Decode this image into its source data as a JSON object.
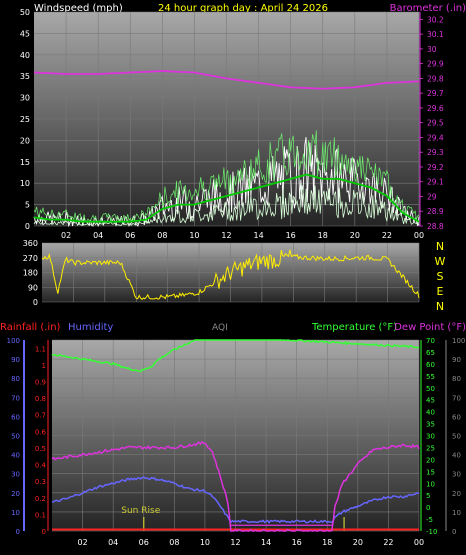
{
  "header": {
    "left": "Windspeed (mph)",
    "center": "24 hour graph day : April 24 2026",
    "right": "Barometer (.in)"
  },
  "colors": {
    "windspeed": "#ffffff",
    "wind_avg": "#00cc00",
    "gust": "#d8ffd8",
    "barometer": "#dd33dd",
    "direction": "#ffee00",
    "rainfall": "#ff2222",
    "humidity": "#6666ff",
    "aqi": "#888888",
    "temperature": "#33ff33",
    "dewpoint": "#dd33dd",
    "sunrise": "#cccc33"
  },
  "chart_data": [
    {
      "type": "line",
      "name": "wind-and-barometer",
      "xlabel": "",
      "x_ticks": [
        "02",
        "04",
        "06",
        "08",
        "10",
        "12",
        "14",
        "16",
        "18",
        "20",
        "22",
        "00"
      ],
      "x_range_hours": [
        0,
        24
      ],
      "y_left": {
        "label": "Windspeed (mph)",
        "ticks": [
          0,
          5,
          10,
          15,
          20,
          25,
          30,
          35,
          40,
          45,
          50
        ],
        "range": [
          0,
          50
        ]
      },
      "y_right": {
        "label": "Barometer (.in)",
        "ticks": [
          "28.8",
          "28.9",
          "29",
          "29.1",
          "29.2",
          "29.3",
          "29.4",
          "29.5",
          "29.6",
          "29.7",
          "29.8",
          "29.9",
          "30",
          "30.1",
          "30.2"
        ],
        "range": [
          28.8,
          30.25
        ]
      },
      "series": [
        {
          "name": "Barometer",
          "axis": "right",
          "x": [
            0,
            2,
            4,
            6,
            8,
            10,
            12,
            14,
            16,
            18,
            20,
            22,
            24
          ],
          "values": [
            29.84,
            29.83,
            29.83,
            29.84,
            29.85,
            29.84,
            29.8,
            29.77,
            29.74,
            29.73,
            29.74,
            29.77,
            29.78
          ]
        },
        {
          "name": "Wind average",
          "axis": "left",
          "x": [
            0,
            1,
            2,
            3,
            4,
            5,
            6,
            7,
            8,
            9,
            10,
            11,
            12,
            13,
            14,
            15,
            16,
            17,
            18,
            19,
            20,
            21,
            22,
            23,
            24
          ],
          "values": [
            2,
            1.5,
            1.5,
            1,
            1,
            1,
            1,
            1.5,
            4,
            5,
            5,
            6,
            7,
            8,
            9,
            10,
            11,
            12,
            11,
            11,
            10,
            9,
            7,
            3,
            1
          ]
        },
        {
          "name": "Gust",
          "axis": "left",
          "x": [
            0,
            1,
            2,
            3,
            4,
            5,
            6,
            7,
            8,
            9,
            10,
            11,
            12,
            13,
            14,
            15,
            16,
            17,
            18,
            19,
            20,
            21,
            22,
            23,
            24
          ],
          "values": [
            5,
            4,
            4,
            3,
            3,
            3,
            3,
            4,
            9,
            11,
            12,
            13,
            14,
            16,
            18,
            21,
            23,
            25,
            22,
            21,
            18,
            16,
            13,
            6,
            3
          ]
        }
      ]
    },
    {
      "type": "scatter",
      "name": "wind-direction",
      "y_ticks": [
        0,
        90,
        180,
        270,
        360
      ],
      "y_range": [
        0,
        360
      ],
      "right_labels": [
        "N",
        "W",
        "S",
        "E",
        "N"
      ],
      "series": [
        {
          "name": "Direction",
          "x": [
            0,
            0.5,
            1,
            1.5,
            2,
            3,
            4,
            5,
            6,
            7,
            8,
            9,
            10,
            11,
            12,
            13,
            14,
            15,
            16,
            17,
            18,
            19,
            20,
            21,
            22,
            23,
            24
          ],
          "values": [
            270,
            280,
            60,
            260,
            240,
            240,
            240,
            240,
            30,
            30,
            30,
            40,
            60,
            120,
            180,
            220,
            250,
            260,
            275,
            270,
            265,
            265,
            270,
            270,
            260,
            150,
            40
          ]
        }
      ]
    },
    {
      "type": "line",
      "name": "rain-humidity-temperature",
      "header": {
        "rainfall": "Rainfall (.in)",
        "humidity": "Humidity",
        "aqi": "AQI",
        "temperature": "Temperature (°F)",
        "dewpoint": "Dew Point (°F)"
      },
      "x_ticks": [
        "02",
        "04",
        "06",
        "08",
        "10",
        "12",
        "14",
        "16",
        "18",
        "20",
        "22",
        "00"
      ],
      "x_range_hours": [
        0,
        24
      ],
      "y_humidity": {
        "ticks": [
          0,
          10,
          20,
          30,
          40,
          50,
          60,
          70,
          80,
          90,
          100
        ],
        "range": [
          0,
          100
        ]
      },
      "y_rainfall": {
        "ticks": [
          "0",
          "0.1",
          "0.2",
          "0.3",
          "0.4",
          "0.5",
          "0.6",
          "0.7",
          "0.8",
          "0.9",
          "1",
          "1.1"
        ],
        "range": [
          0,
          1.15
        ]
      },
      "y_temperature": {
        "ticks": [
          -10,
          -5,
          0,
          5,
          10,
          15,
          20,
          25,
          30,
          35,
          40,
          45,
          50,
          55,
          60,
          65,
          70
        ],
        "range": [
          -10,
          70
        ]
      },
      "y_aqi": {
        "ticks": [
          0,
          10,
          20,
          30,
          40,
          50,
          60,
          70,
          80,
          90,
          100
        ],
        "range": [
          0,
          100
        ]
      },
      "annotation": "Sun Rise",
      "series": [
        {
          "name": "Temperature",
          "x": [
            0,
            1,
            2,
            3,
            4,
            5,
            5.8,
            6.5,
            7,
            8,
            9,
            10,
            24
          ],
          "values": [
            64,
            63,
            62,
            61,
            60,
            58,
            57,
            59,
            62,
            66,
            69,
            72,
            67
          ]
        },
        {
          "name": "Dew Point",
          "x": [
            0,
            1,
            2,
            3,
            4,
            5,
            6,
            7,
            8,
            9,
            10,
            10.5,
            11,
            11.5,
            11.7,
            18.3,
            18.5,
            19,
            20,
            21,
            22,
            23,
            24
          ],
          "values": [
            20,
            21,
            22,
            23,
            24,
            25,
            25,
            25,
            25,
            26,
            27,
            23,
            13,
            2,
            -10,
            -10,
            0,
            10,
            18,
            24,
            25,
            26,
            25
          ]
        },
        {
          "name": "Humidity",
          "x": [
            0,
            1,
            2,
            3,
            4,
            5,
            6,
            7,
            8,
            9,
            10,
            10.5,
            11,
            11.5,
            11.7,
            18.3,
            18.5,
            19,
            20,
            21,
            22,
            23,
            24
          ],
          "values": [
            15,
            17,
            20,
            23,
            25,
            27,
            28,
            27,
            25,
            22,
            21,
            18,
            13,
            7,
            5,
            5,
            7,
            10,
            13,
            16,
            18,
            18,
            20
          ]
        },
        {
          "name": "Rainfall",
          "x": [
            0,
            24
          ],
          "values": [
            0,
            0
          ]
        },
        {
          "name": "AQI",
          "x": [
            11.7,
            18.3
          ],
          "values": [
            3,
            3
          ]
        }
      ]
    }
  ]
}
